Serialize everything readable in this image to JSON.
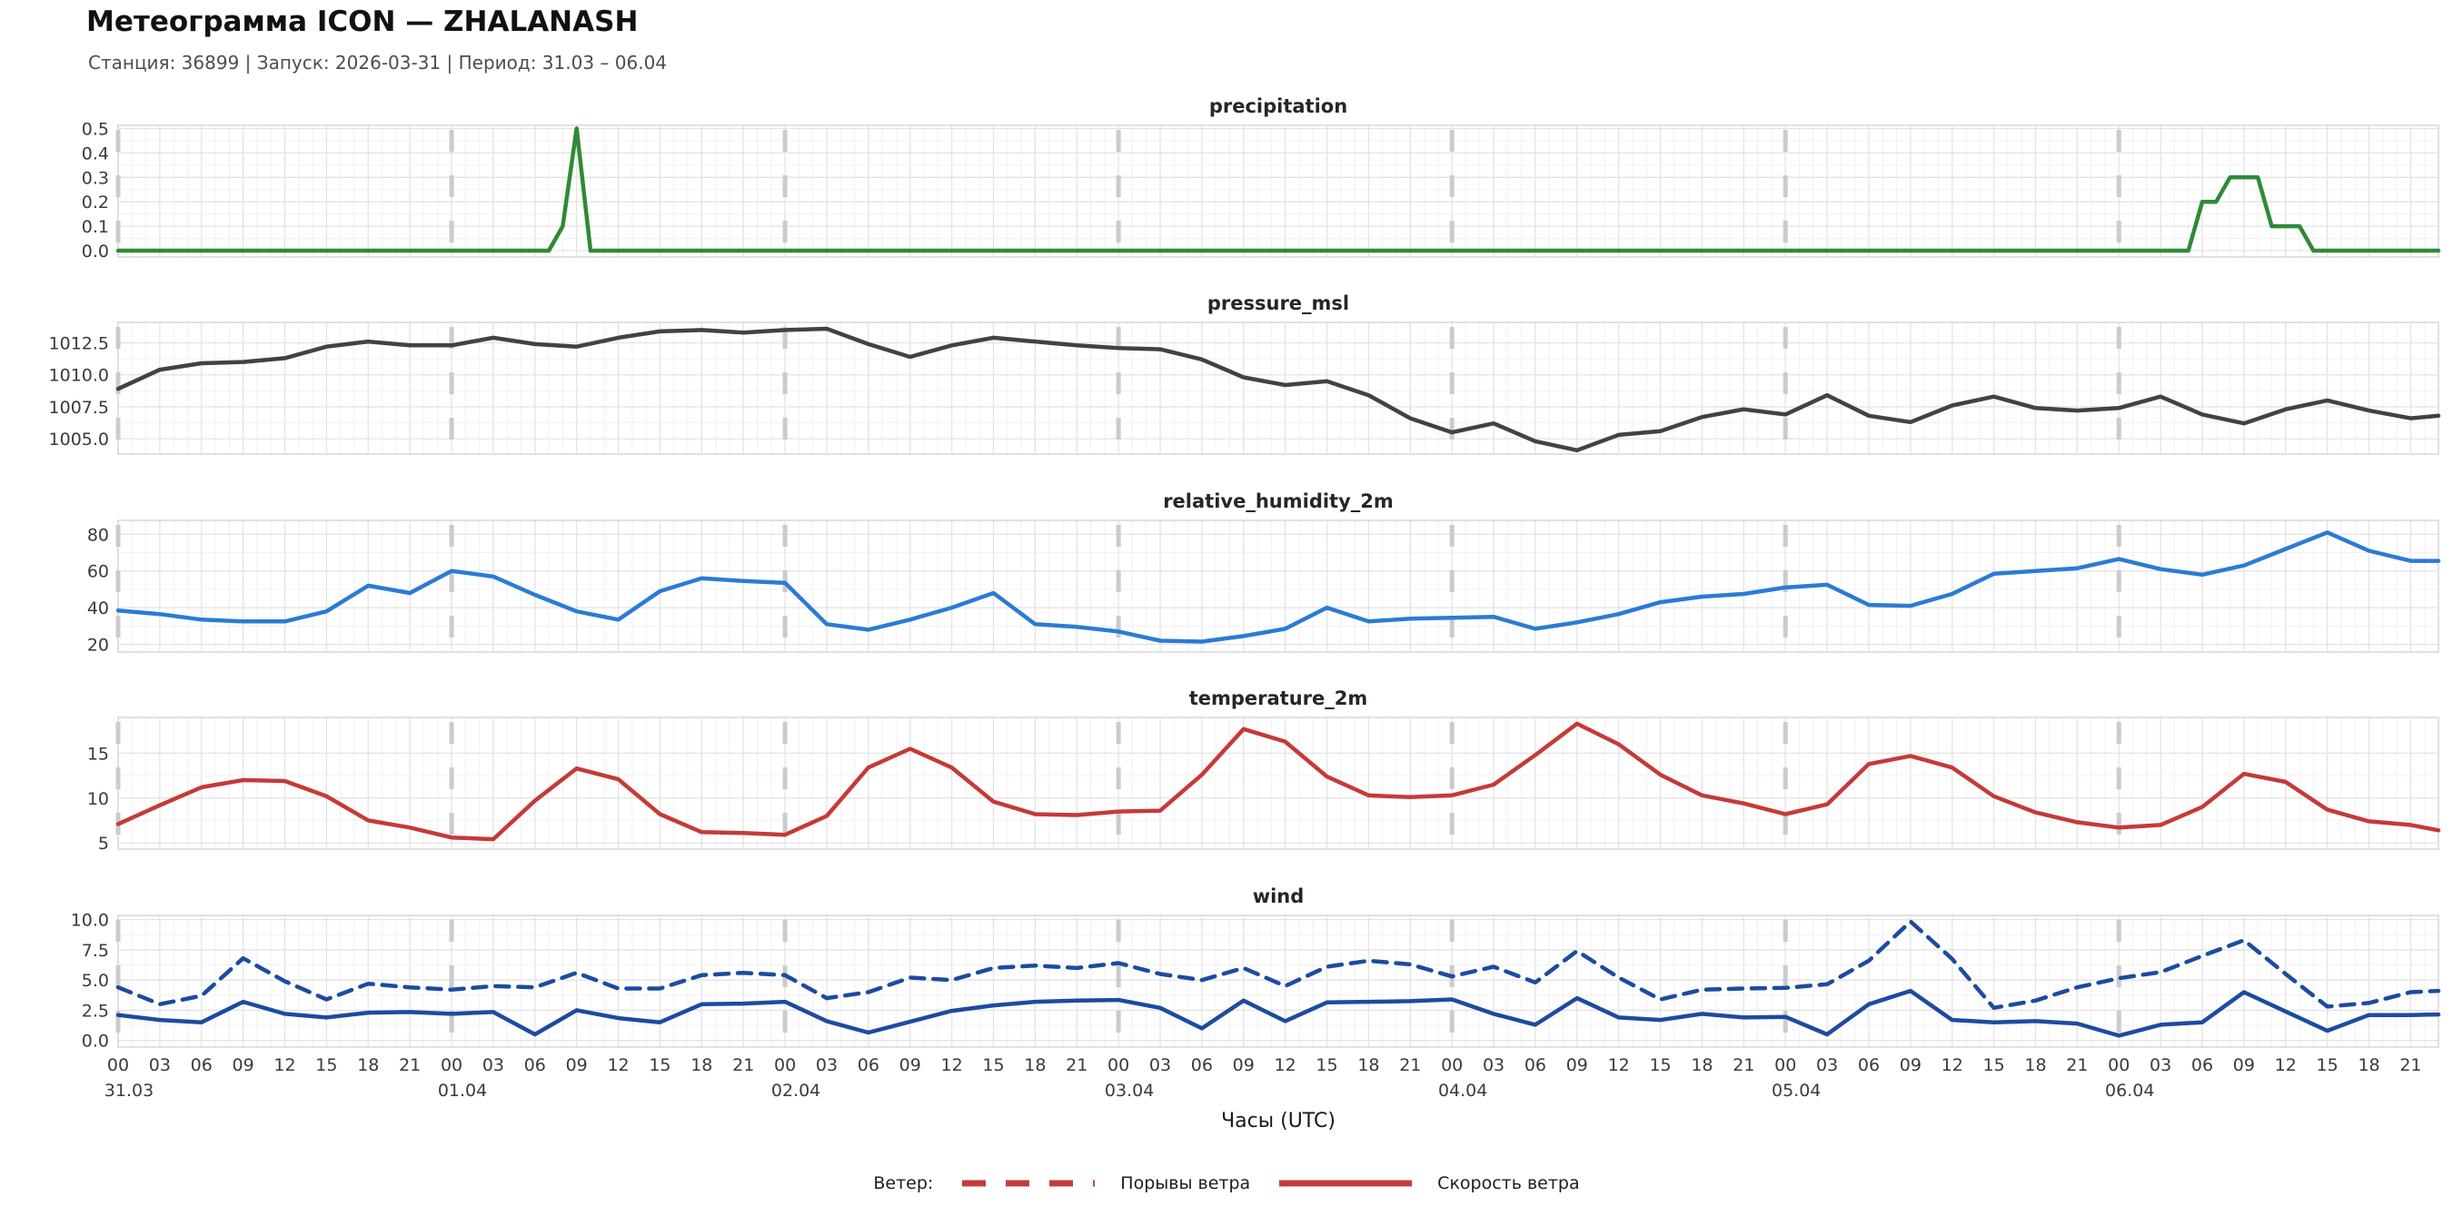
{
  "header": {
    "title": "Метеограмма ICON — ZHALANASH",
    "subtitle": "Станция: 36899  | Запуск: 2026-03-31  | Период: 31.03 – 06.04"
  },
  "chart_meta": {
    "xlabel": "Часы (UTC)",
    "hour_min": 0,
    "hour_max": 167,
    "day_count": 7,
    "day_labels": [
      "31.03",
      "01.04",
      "02.04",
      "03.04",
      "04.04",
      "05.04",
      "06.04"
    ],
    "hour_tick_labels": [
      "00",
      "03",
      "06",
      "09",
      "12",
      "15",
      "18",
      "21"
    ],
    "hours_3h": [
      0,
      3,
      6,
      9,
      12,
      15,
      18,
      21,
      24,
      27,
      30,
      33,
      36,
      39,
      42,
      45,
      48,
      51,
      54,
      57,
      60,
      63,
      66,
      69,
      72,
      75,
      78,
      81,
      84,
      87,
      90,
      93,
      96,
      99,
      102,
      105,
      108,
      111,
      114,
      117,
      120,
      123,
      126,
      129,
      132,
      135,
      138,
      141,
      144,
      147,
      150,
      153,
      156,
      159,
      162,
      165,
      167
    ],
    "grid_minor_color": "#f1f1f1",
    "grid_major_color": "#e3e3e3",
    "spine_color": "#d7d7d7",
    "day_line_color": "#cbcbcb"
  },
  "chart_data": [
    {
      "type": "line",
      "title": "precipitation",
      "color": "#2f8a38",
      "ylim": [
        -0.026,
        0.513
      ],
      "yticks": [
        0.0,
        0.1,
        0.2,
        0.3,
        0.4,
        0.5
      ],
      "ytick_labels": [
        "0.0",
        "0.1",
        "0.2",
        "0.3",
        "0.4",
        "0.5"
      ],
      "series": [
        {
          "name": "precipitation",
          "style": "solid",
          "hours": [
            0,
            31,
            32,
            33,
            34,
            148,
            149,
            150,
            151,
            152,
            153,
            154,
            155,
            156,
            157,
            158,
            167
          ],
          "values": [
            0,
            0,
            0.1,
            0.5,
            0,
            0,
            0,
            0.2,
            0.2,
            0.3,
            0.3,
            0.3,
            0.1,
            0.1,
            0.1,
            0,
            0
          ]
        }
      ]
    },
    {
      "type": "line",
      "title": "pressure_msl",
      "color": "#424242",
      "ylim": [
        1003.8,
        1014.1
      ],
      "yticks": [
        1005.0,
        1007.5,
        1010.0,
        1012.5
      ],
      "ytick_labels": [
        "1005.0",
        "1007.5",
        "1010.0",
        "1012.5"
      ],
      "series": [
        {
          "name": "pressure_msl",
          "style": "solid",
          "hours": "3h",
          "values": [
            1008.9,
            1010.4,
            1010.9,
            1011.0,
            1011.3,
            1012.2,
            1012.6,
            1012.3,
            1012.3,
            1012.9,
            1012.4,
            1012.2,
            1012.9,
            1013.4,
            1013.5,
            1013.3,
            1013.5,
            1013.6,
            1012.4,
            1011.4,
            1012.3,
            1012.9,
            1012.6,
            1012.3,
            1012.1,
            1012.0,
            1011.2,
            1009.8,
            1009.2,
            1009.5,
            1008.4,
            1006.6,
            1005.5,
            1006.2,
            1004.8,
            1004.1,
            1005.3,
            1005.6,
            1006.7,
            1007.3,
            1006.9,
            1008.4,
            1006.8,
            1006.3,
            1007.6,
            1008.3,
            1007.4,
            1007.2,
            1007.4,
            1008.3,
            1006.9,
            1006.2,
            1007.3,
            1008.0,
            1007.2,
            1006.6,
            1006.8
          ]
        }
      ]
    },
    {
      "type": "line",
      "title": "relative_humidity_2m",
      "color": "#2b7bd4",
      "ylim": [
        15.8,
        87.6
      ],
      "yticks": [
        20,
        40,
        60,
        80
      ],
      "ytick_labels": [
        "20",
        "40",
        "60",
        "80"
      ],
      "series": [
        {
          "name": "relative_humidity_2m",
          "style": "solid",
          "hours": "3h",
          "values": [
            38.5,
            36.5,
            33.5,
            32.5,
            32.5,
            38,
            52,
            48,
            60,
            57,
            47,
            38,
            33.5,
            49,
            56,
            54.5,
            53.5,
            31,
            28,
            33.5,
            40,
            48,
            31,
            29.5,
            27,
            22,
            21.5,
            24.5,
            28.5,
            40,
            32.5,
            34,
            34.5,
            35,
            28.5,
            32,
            36.5,
            43,
            46,
            47.5,
            51,
            52.5,
            41.5,
            41,
            47.5,
            58.5,
            60,
            61.5,
            66.5,
            61,
            58,
            63,
            72,
            81,
            71,
            65.5,
            65.5
          ]
        }
      ]
    },
    {
      "type": "line",
      "title": "temperature_2m",
      "color": "#c53a38",
      "ylim": [
        4.3,
        19.0
      ],
      "yticks": [
        5,
        10,
        15
      ],
      "ytick_labels": [
        "5",
        "10",
        "15"
      ],
      "series": [
        {
          "name": "temperature_2m",
          "style": "solid",
          "hours": "3h",
          "values": [
            7.1,
            9.2,
            11.2,
            12.0,
            11.9,
            10.2,
            7.5,
            6.7,
            5.6,
            5.4,
            9.7,
            13.3,
            12.1,
            8.2,
            6.2,
            6.1,
            5.9,
            8.0,
            13.4,
            15.5,
            13.4,
            9.6,
            8.2,
            8.1,
            8.5,
            8.6,
            12.6,
            17.7,
            16.3,
            12.4,
            10.3,
            10.1,
            10.3,
            11.5,
            14.8,
            18.3,
            16.0,
            12.6,
            10.3,
            9.4,
            8.2,
            9.3,
            13.8,
            14.7,
            13.4,
            10.2,
            8.4,
            7.3,
            6.7,
            7.0,
            9.0,
            12.7,
            11.8,
            8.7,
            7.4,
            7.0,
            6.4
          ]
        }
      ]
    },
    {
      "type": "line",
      "title": "wind",
      "color": "#1c4ba0",
      "ylim": [
        -0.55,
        10.35
      ],
      "yticks": [
        0.0,
        2.5,
        5.0,
        7.5,
        10.0
      ],
      "ytick_labels": [
        "0.0",
        "2.5",
        "5.0",
        "7.5",
        "10.0"
      ],
      "series": [
        {
          "name": "Порывы ветра",
          "style": "dashed",
          "hours": "3h",
          "values": [
            4.4,
            3.0,
            3.7,
            6.8,
            4.9,
            3.4,
            4.7,
            4.4,
            4.2,
            4.5,
            4.4,
            5.6,
            4.3,
            4.3,
            5.4,
            5.6,
            5.4,
            3.5,
            4.0,
            5.2,
            5.0,
            6.0,
            6.2,
            6.0,
            6.4,
            5.5,
            5.0,
            6.0,
            4.5,
            6.1,
            6.6,
            6.3,
            5.3,
            6.1,
            4.8,
            7.4,
            5.2,
            3.4,
            4.2,
            4.3,
            4.35,
            4.65,
            6.6,
            9.85,
            6.75,
            2.7,
            3.3,
            4.4,
            5.15,
            5.65,
            7.0,
            8.3,
            5.5,
            2.8,
            3.1,
            4.0,
            4.1
          ]
        },
        {
          "name": "Скорость ветра",
          "style": "solid",
          "hours": "3h",
          "values": [
            2.1,
            1.7,
            1.5,
            3.2,
            2.2,
            1.9,
            2.3,
            2.35,
            2.2,
            2.35,
            0.5,
            2.5,
            1.85,
            1.5,
            3.0,
            3.05,
            3.2,
            1.6,
            0.65,
            1.55,
            2.45,
            2.9,
            3.2,
            3.3,
            3.35,
            2.7,
            1.0,
            3.3,
            1.6,
            3.15,
            3.2,
            3.25,
            3.4,
            2.2,
            1.3,
            3.5,
            1.9,
            1.7,
            2.2,
            1.9,
            1.95,
            0.5,
            3.0,
            4.1,
            1.7,
            1.5,
            1.6,
            1.4,
            0.4,
            1.3,
            1.5,
            4.0,
            2.4,
            0.8,
            2.1,
            2.1,
            2.15
          ]
        }
      ]
    }
  ],
  "legend": {
    "label": "Ветер:",
    "color": "#c43c3c",
    "items": [
      {
        "label": "Порывы ветра",
        "style": "dashed"
      },
      {
        "label": "Скорость ветра",
        "style": "solid"
      }
    ]
  }
}
